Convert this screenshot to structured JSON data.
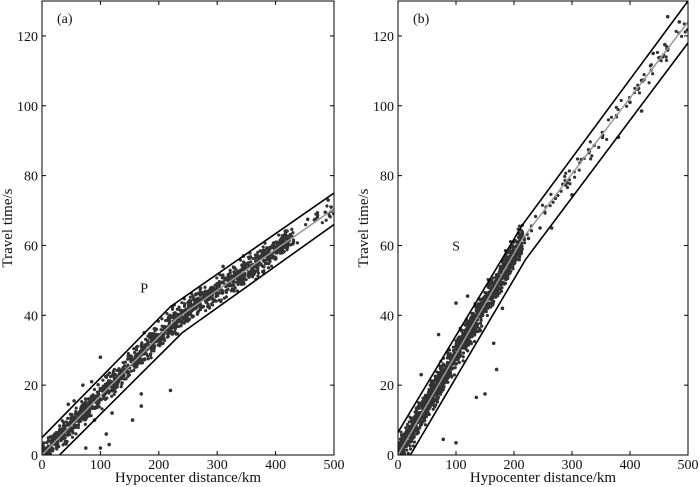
{
  "chart_data": [
    {
      "type": "scatter",
      "panel_label": "(a)",
      "annotation": "P",
      "xlabel": "Hypocenter distance/km",
      "ylabel": "Travel time/s",
      "xlim": [
        0,
        500
      ],
      "ylim": [
        0,
        130
      ],
      "xticks": [
        "0",
        "100",
        "200",
        "300",
        "400",
        "500"
      ],
      "yticks": [
        "0",
        "20",
        "40",
        "60",
        "80",
        "100",
        "120"
      ],
      "fit_line": {
        "x": [
          0,
          230,
          500
        ],
        "y": [
          0,
          39,
          70.5
        ],
        "color": "#999999"
      },
      "upper_bound": {
        "x": [
          0,
          220,
          500
        ],
        "y": [
          5,
          42.5,
          75
        ]
      },
      "lower_bound": {
        "x": [
          0,
          240,
          500
        ],
        "y": [
          -5,
          35,
          66
        ]
      },
      "dense_range_km": [
        0,
        430
      ],
      "scatter_spread_s": 2.5,
      "sparse_range_km": [
        430,
        500
      ],
      "outliers": [
        [
          100,
          28
        ],
        [
          220,
          18.5
        ],
        [
          75,
          2
        ],
        [
          100,
          2
        ],
        [
          115,
          3
        ],
        [
          170,
          14
        ],
        [
          155,
          10
        ],
        [
          110,
          6
        ],
        [
          70,
          20
        ],
        [
          85,
          21
        ],
        [
          45,
          14.5
        ],
        [
          175,
          35
        ],
        [
          55,
          15.5
        ],
        [
          170,
          17.5
        ],
        [
          490,
          73
        ],
        [
          495,
          71
        ],
        [
          485,
          69.5
        ],
        [
          455,
          67.5
        ],
        [
          310,
          54
        ],
        [
          345,
          57
        ],
        [
          380,
          52
        ],
        [
          300,
          49
        ],
        [
          90,
          10
        ],
        [
          120,
          12
        ]
      ],
      "point_color": "#333333"
    },
    {
      "type": "scatter",
      "panel_label": "(b)",
      "annotation": "S",
      "xlabel": "Hypocenter distance/km",
      "ylabel": "Travel time/s",
      "xlim": [
        0,
        500
      ],
      "ylim": [
        0,
        130
      ],
      "xticks": [
        "0",
        "100",
        "200",
        "300",
        "400",
        "500"
      ],
      "yticks": [
        "0",
        "20",
        "40",
        "60",
        "80",
        "100",
        "120"
      ],
      "fit_line": {
        "x": [
          0,
          215,
          500
        ],
        "y": [
          0,
          62,
          124
        ],
        "color": "#999999"
      },
      "upper_bound": {
        "x": [
          0,
          215,
          500
        ],
        "y": [
          6.5,
          66,
          130
        ]
      },
      "lower_bound": {
        "x": [
          0,
          220,
          500
        ],
        "y": [
          -6,
          56,
          118
        ]
      },
      "dense_range_km": [
        0,
        215
      ],
      "scatter_spread_s": 3,
      "sparse_range_km": [
        215,
        500
      ],
      "outliers": [
        [
          100,
          43.5
        ],
        [
          100,
          3.5
        ],
        [
          78,
          4.5
        ],
        [
          70,
          34.5
        ],
        [
          40,
          23
        ],
        [
          150,
          17.5
        ],
        [
          135,
          16.5
        ],
        [
          170,
          24.5
        ],
        [
          165,
          32
        ],
        [
          120,
          45.5
        ],
        [
          180,
          42
        ],
        [
          465,
          125.5
        ],
        [
          485,
          124
        ],
        [
          420,
          98.5
        ],
        [
          380,
          91
        ],
        [
          300,
          74.5
        ],
        [
          265,
          65
        ],
        [
          245,
          65
        ],
        [
          225,
          62
        ],
        [
          330,
          87
        ],
        [
          400,
          101
        ],
        [
          440,
          115
        ],
        [
          460,
          117.5
        ]
      ],
      "point_color": "#333333"
    }
  ]
}
